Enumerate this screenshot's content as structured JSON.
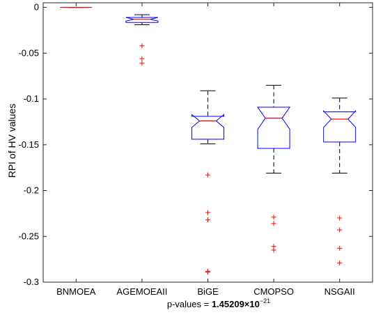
{
  "chart_data": {
    "type": "box",
    "ylabel": "RPI of HV values",
    "xlabel": "p-values = ",
    "xlabel_value": "1.45209×10",
    "xlabel_exponent": "−21",
    "ylim": [
      -0.3,
      0.005
    ],
    "yticks": [
      0,
      -0.05,
      -0.1,
      -0.15,
      -0.2,
      -0.25,
      -0.3
    ],
    "ytick_labels": [
      "0",
      "-0.05",
      "-0.1",
      "-0.15",
      "-0.2",
      "-0.25",
      "-0.3"
    ],
    "grid": false,
    "categories": [
      "BNMOEA",
      "AGEMOEAII",
      "BiGE",
      "CMOPSO",
      "NSGAII"
    ],
    "boxes": [
      {
        "label": "BNMOEA",
        "whisker_high": 0,
        "q3": 0,
        "median": 0,
        "q1": 0,
        "whisker_low": 0,
        "notch": 0,
        "outliers": []
      },
      {
        "label": "AGEMOEAII",
        "whisker_high": -0.008,
        "q3": -0.011,
        "median": -0.013,
        "q1": -0.0165,
        "whisker_low": -0.019,
        "notch": 0.002,
        "outliers": [
          -0.042,
          -0.056,
          -0.061
        ]
      },
      {
        "label": "BiGE",
        "whisker_high": -0.091,
        "q3": -0.119,
        "median": -0.124,
        "q1": -0.144,
        "whisker_low": -0.149,
        "notch": 0.007,
        "outliers": [
          -0.183,
          -0.224,
          -0.232,
          -0.288,
          -0.289
        ]
      },
      {
        "label": "CMOPSO",
        "whisker_high": -0.085,
        "q3": -0.109,
        "median": -0.121,
        "q1": -0.154,
        "whisker_low": -0.181,
        "notch": 0.012,
        "outliers": [
          -0.229,
          -0.236,
          -0.261,
          -0.265
        ]
      },
      {
        "label": "NSGAII",
        "whisker_high": -0.099,
        "q3": -0.114,
        "median": -0.122,
        "q1": -0.147,
        "whisker_low": -0.181,
        "notch": 0.009,
        "outliers": [
          -0.23,
          -0.243,
          -0.263,
          -0.279
        ]
      }
    ],
    "colors": {
      "box": "#0000ff",
      "median": "#ff0000",
      "whisker": "#000000",
      "outlier": "#ff0000",
      "axes": "#262626"
    }
  }
}
